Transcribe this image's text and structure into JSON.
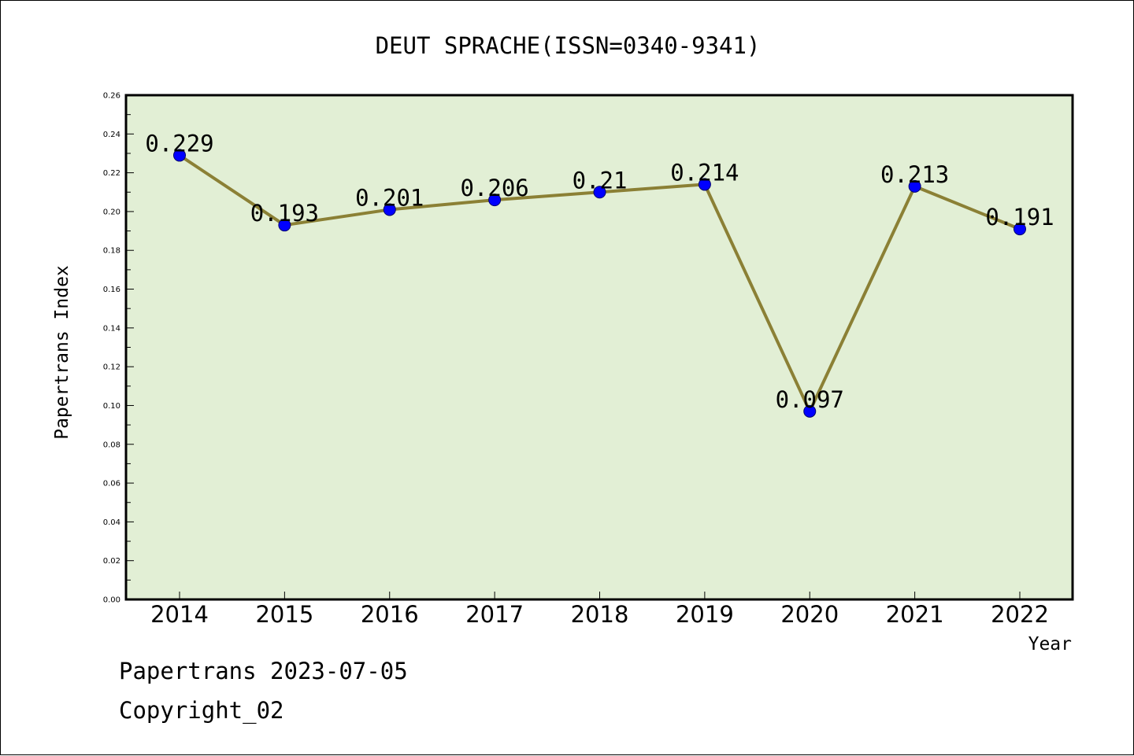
{
  "chart_data": {
    "type": "line",
    "title": "DEUT SPRACHE(ISSN=0340-9341)",
    "xlabel": "Year",
    "ylabel": "Papertrans Index",
    "categories": [
      "2014",
      "2015",
      "2016",
      "2017",
      "2018",
      "2019",
      "2020",
      "2021",
      "2022"
    ],
    "series": [
      {
        "values": [
          0.229,
          0.193,
          0.201,
          0.206,
          0.21,
          0.214,
          0.097,
          0.213,
          0.191
        ]
      }
    ],
    "data_labels": [
      "0.229",
      "0.193",
      "0.201",
      "0.206",
      "0.21",
      "0.214",
      "0.097",
      "0.213",
      "0.191"
    ],
    "ylim": [
      0,
      0.26
    ],
    "yticks": [
      "0.00",
      "0.02",
      "0.04",
      "0.06",
      "0.08",
      "0.10",
      "0.12",
      "0.14",
      "0.16",
      "0.18",
      "0.20",
      "0.22",
      "0.24",
      "0.26"
    ],
    "grid": false,
    "legend": "none",
    "colors": {
      "plot_background": "#e2efd5",
      "line": "#8b8035",
      "marker": "#0000ff",
      "marker_edge": "#00006e"
    }
  },
  "footer": {
    "line1": "Papertrans 2023-07-05",
    "line2": "Copyright_02"
  }
}
